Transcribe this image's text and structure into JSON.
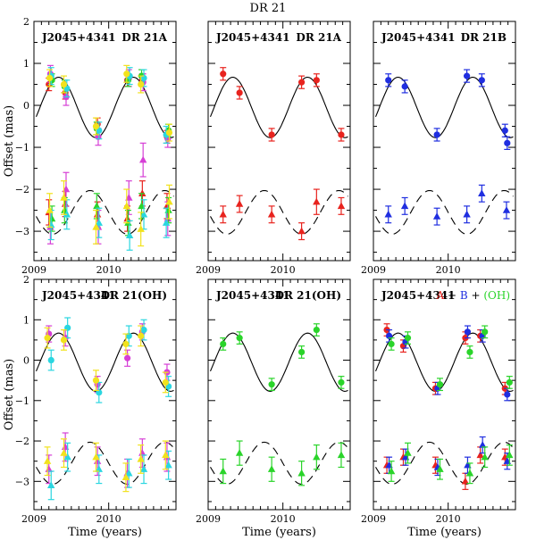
{
  "title": "DR 21",
  "colors": {
    "red": "#e8231e",
    "blue": "#1f2ee0",
    "green": "#2ad42a",
    "magenta": "#d63fd6",
    "cyan": "#2ad6e0",
    "yellow": "#f2e21c",
    "black": "#000000"
  },
  "chart_data": [
    {
      "type": "scatter",
      "panel": "top-left",
      "source_label": "J2045+4341",
      "target_label": "DR 21A",
      "xlim": [
        2009,
        2010.9
      ],
      "ylim": [
        -3.7,
        2
      ],
      "xticklabels": [
        "2009",
        "2010"
      ],
      "yticklabels": [
        "2",
        "1",
        "0",
        "−1",
        "−2",
        "−3"
      ],
      "ylabel": "Offset (mas)",
      "xlabel": "",
      "series": [
        {
          "color": "red",
          "marker": "circle",
          "x": [
            2009.2,
            2009.42,
            2009.85,
            2010.25,
            2010.45,
            2010.78
          ],
          "y": [
            0.5,
            0.3,
            -0.45,
            0.6,
            0.6,
            -0.75
          ],
          "err": [
            0.15,
            0.15,
            0.15,
            0.15,
            0.15,
            0.15
          ]
        },
        {
          "color": "magenta",
          "marker": "circle",
          "x": [
            2009.22,
            2009.43,
            2009.86,
            2010.27,
            2010.46,
            2010.79
          ],
          "y": [
            0.75,
            0.2,
            -0.75,
            0.65,
            0.55,
            -0.8
          ],
          "err": [
            0.2,
            0.2,
            0.2,
            0.2,
            0.2,
            0.2
          ]
        },
        {
          "color": "green",
          "marker": "circle",
          "x": [
            2009.24,
            2009.41,
            2009.84,
            2010.26,
            2010.44,
            2010.8
          ],
          "y": [
            0.6,
            0.45,
            -0.55,
            0.6,
            0.7,
            -0.6
          ],
          "err": [
            0.15,
            0.15,
            0.15,
            0.15,
            0.15,
            0.15
          ]
        },
        {
          "color": "cyan",
          "marker": "circle",
          "x": [
            2009.23,
            2009.44,
            2009.87,
            2010.28,
            2010.47,
            2010.77
          ],
          "y": [
            0.7,
            0.4,
            -0.6,
            0.7,
            0.65,
            -0.7
          ],
          "err": [
            0.2,
            0.2,
            0.2,
            0.2,
            0.2,
            0.2
          ]
        },
        {
          "color": "yellow",
          "marker": "circle",
          "x": [
            2009.21,
            2009.4,
            2009.83,
            2010.24,
            2010.43,
            2010.81
          ],
          "y": [
            0.65,
            0.5,
            -0.5,
            0.75,
            0.5,
            -0.65
          ],
          "err": [
            0.2,
            0.2,
            0.2,
            0.2,
            0.2,
            0.2
          ]
        },
        {
          "color": "red",
          "marker": "triangle",
          "x": [
            2009.2,
            2009.42,
            2009.85,
            2010.25,
            2010.45,
            2010.78
          ],
          "y": [
            -2.55,
            -2.35,
            -2.6,
            -2.7,
            -2.1,
            -2.4
          ],
          "err": [
            0.3,
            0.3,
            0.3,
            0.3,
            0.3,
            0.3
          ]
        },
        {
          "color": "magenta",
          "marker": "triangle",
          "x": [
            2009.22,
            2009.43,
            2009.86,
            2010.27,
            2010.46,
            2010.79
          ],
          "y": [
            -2.9,
            -2.0,
            -2.9,
            -2.2,
            -1.3,
            -2.7
          ],
          "err": [
            0.4,
            0.4,
            0.4,
            0.4,
            0.4,
            0.4
          ]
        },
        {
          "color": "green",
          "marker": "triangle",
          "x": [
            2009.24,
            2009.41,
            2009.84,
            2010.26,
            2010.44,
            2010.8
          ],
          "y": [
            -2.7,
            -2.5,
            -2.4,
            -2.8,
            -2.4,
            -2.5
          ],
          "err": [
            0.3,
            0.3,
            0.3,
            0.3,
            0.3,
            0.3
          ]
        },
        {
          "color": "cyan",
          "marker": "triangle",
          "x": [
            2009.23,
            2009.44,
            2009.87,
            2010.28,
            2010.47,
            2010.77
          ],
          "y": [
            -2.85,
            -2.6,
            -2.8,
            -3.1,
            -2.6,
            -2.8
          ],
          "err": [
            0.35,
            0.35,
            0.35,
            0.35,
            0.35,
            0.35
          ]
        },
        {
          "color": "yellow",
          "marker": "triangle",
          "x": [
            2009.21,
            2009.4,
            2009.83,
            2010.24,
            2010.43,
            2010.81
          ],
          "y": [
            -2.5,
            -2.2,
            -2.9,
            -2.4,
            -2.95,
            -2.3
          ],
          "err": [
            0.4,
            0.4,
            0.4,
            0.4,
            0.4,
            0.4
          ]
        }
      ]
    },
    {
      "type": "scatter",
      "panel": "top-middle",
      "source_label": "J2045+4341",
      "target_label": "DR 21A",
      "xlim": [
        2009,
        2010.9
      ],
      "ylim": [
        -3.7,
        2
      ],
      "xticklabels": [
        "2009",
        "2010"
      ],
      "yticklabels": [],
      "ylabel": "",
      "xlabel": "",
      "series": [
        {
          "color": "red",
          "marker": "circle",
          "x": [
            2009.2,
            2009.42,
            2009.85,
            2010.25,
            2010.45,
            2010.78
          ],
          "y": [
            0.75,
            0.3,
            -0.7,
            0.55,
            0.6,
            -0.7
          ],
          "err": [
            0.15,
            0.15,
            0.15,
            0.15,
            0.15,
            0.15
          ]
        },
        {
          "color": "red",
          "marker": "triangle",
          "x": [
            2009.2,
            2009.42,
            2009.85,
            2010.25,
            2010.45,
            2010.78
          ],
          "y": [
            -2.6,
            -2.35,
            -2.6,
            -3.0,
            -2.3,
            -2.4
          ],
          "err": [
            0.2,
            0.2,
            0.2,
            0.2,
            0.3,
            0.2
          ]
        }
      ]
    },
    {
      "type": "scatter",
      "panel": "top-right",
      "source_label": "J2045+4341",
      "target_label": "DR 21B",
      "xlim": [
        2009,
        2010.9
      ],
      "ylim": [
        -3.7,
        2
      ],
      "xticklabels": [
        "2009",
        "2010"
      ],
      "yticklabels": [],
      "ylabel": "",
      "xlabel": "",
      "series": [
        {
          "color": "blue",
          "marker": "circle",
          "x": [
            2009.2,
            2009.42,
            2009.85,
            2010.25,
            2010.45,
            2010.76,
            2010.79
          ],
          "y": [
            0.6,
            0.45,
            -0.7,
            0.7,
            0.6,
            -0.6,
            -0.9
          ],
          "err": [
            0.15,
            0.15,
            0.15,
            0.15,
            0.15,
            0.15,
            0.15
          ]
        },
        {
          "color": "blue",
          "marker": "triangle",
          "x": [
            2009.2,
            2009.42,
            2009.85,
            2010.25,
            2010.45,
            2010.78
          ],
          "y": [
            -2.6,
            -2.4,
            -2.65,
            -2.6,
            -2.1,
            -2.5
          ],
          "err": [
            0.2,
            0.2,
            0.2,
            0.2,
            0.2,
            0.2
          ]
        }
      ]
    },
    {
      "type": "scatter",
      "panel": "bottom-left",
      "source_label": "J2045+4341",
      "target_label": "DR 21(OH)",
      "xlim": [
        2009,
        2010.9
      ],
      "ylim": [
        -3.7,
        2
      ],
      "xticklabels": [
        "2009",
        "2010"
      ],
      "yticklabels": [
        "2",
        "1",
        "0",
        "−1",
        "−2",
        "−3"
      ],
      "ylabel": "Offset (mas)",
      "xlabel": "Time (years)",
      "series": [
        {
          "color": "magenta",
          "marker": "circle",
          "x": [
            2009.2,
            2009.42,
            2009.85,
            2010.25,
            2010.45,
            2010.78
          ],
          "y": [
            0.65,
            0.55,
            -0.6,
            0.05,
            0.7,
            -0.3
          ],
          "err": [
            0.2,
            0.2,
            0.2,
            0.2,
            0.2,
            0.2
          ]
        },
        {
          "color": "cyan",
          "marker": "circle",
          "x": [
            2009.23,
            2009.45,
            2009.87,
            2010.27,
            2010.47,
            2010.8
          ],
          "y": [
            0.0,
            0.8,
            -0.8,
            0.6,
            0.75,
            -0.65
          ],
          "err": [
            0.25,
            0.25,
            0.25,
            0.25,
            0.25,
            0.25
          ]
        },
        {
          "color": "yellow",
          "marker": "circle",
          "x": [
            2009.18,
            2009.4,
            2009.83,
            2010.23,
            2010.43,
            2010.76
          ],
          "y": [
            0.55,
            0.5,
            -0.5,
            0.4,
            0.6,
            -0.55
          ],
          "err": [
            0.25,
            0.25,
            0.25,
            0.25,
            0.25,
            0.25
          ]
        },
        {
          "color": "magenta",
          "marker": "triangle",
          "x": [
            2009.2,
            2009.42,
            2009.85,
            2010.25,
            2010.45,
            2010.78
          ],
          "y": [
            -2.7,
            -2.15,
            -2.5,
            -2.8,
            -2.3,
            -2.4
          ],
          "err": [
            0.35,
            0.35,
            0.35,
            0.35,
            0.35,
            0.35
          ]
        },
        {
          "color": "cyan",
          "marker": "triangle",
          "x": [
            2009.23,
            2009.45,
            2009.87,
            2010.27,
            2010.47,
            2010.8
          ],
          "y": [
            -3.1,
            -2.4,
            -2.7,
            -2.8,
            -2.7,
            -2.6
          ],
          "err": [
            0.35,
            0.35,
            0.35,
            0.35,
            0.35,
            0.35
          ]
        },
        {
          "color": "yellow",
          "marker": "triangle",
          "x": [
            2009.18,
            2009.4,
            2009.83,
            2010.23,
            2010.43,
            2010.76
          ],
          "y": [
            -2.5,
            -2.3,
            -2.4,
            -2.9,
            -2.45,
            -2.35
          ],
          "err": [
            0.35,
            0.35,
            0.35,
            0.35,
            0.35,
            0.35
          ]
        }
      ]
    },
    {
      "type": "scatter",
      "panel": "bottom-middle",
      "source_label": "J2045+4341",
      "target_label": "DR 21(OH)",
      "xlim": [
        2009,
        2010.9
      ],
      "ylim": [
        -3.7,
        2
      ],
      "xticklabels": [
        "2009",
        "2010"
      ],
      "yticklabels": [],
      "ylabel": "",
      "xlabel": "Time (years)",
      "series": [
        {
          "color": "green",
          "marker": "circle",
          "x": [
            2009.2,
            2009.42,
            2009.85,
            2010.25,
            2010.45,
            2010.78
          ],
          "y": [
            0.4,
            0.55,
            -0.6,
            0.2,
            0.75,
            -0.55
          ],
          "err": [
            0.15,
            0.15,
            0.15,
            0.15,
            0.15,
            0.15
          ]
        },
        {
          "color": "green",
          "marker": "triangle",
          "x": [
            2009.2,
            2009.42,
            2009.85,
            2010.25,
            2010.45,
            2010.78
          ],
          "y": [
            -2.75,
            -2.3,
            -2.7,
            -2.8,
            -2.4,
            -2.35
          ],
          "err": [
            0.3,
            0.3,
            0.3,
            0.3,
            0.3,
            0.3
          ]
        }
      ]
    },
    {
      "type": "scatter",
      "panel": "bottom-right",
      "source_label": "J2045+4341",
      "combo_label": [
        {
          "text": "A",
          "color": "red"
        },
        {
          "text": "+",
          "color": "black"
        },
        {
          "text": "B",
          "color": "blue"
        },
        {
          "text": "+",
          "color": "black"
        },
        {
          "text": "(OH)",
          "color": "green"
        }
      ],
      "xlim": [
        2009,
        2010.9
      ],
      "ylim": [
        -3.7,
        2
      ],
      "xticklabels": [
        "2009",
        "2010"
      ],
      "yticklabels": [],
      "ylabel": "",
      "xlabel": "Time (years)",
      "series": [
        {
          "color": "red",
          "marker": "circle",
          "x": [
            2009.18,
            2009.4,
            2009.83,
            2010.23,
            2010.43,
            2010.76
          ],
          "y": [
            0.75,
            0.35,
            -0.7,
            0.55,
            0.6,
            -0.7
          ],
          "err": [
            0.15,
            0.15,
            0.15,
            0.15,
            0.15,
            0.15
          ]
        },
        {
          "color": "blue",
          "marker": "circle",
          "x": [
            2009.21,
            2009.43,
            2009.86,
            2010.26,
            2010.46,
            2010.79
          ],
          "y": [
            0.6,
            0.45,
            -0.7,
            0.7,
            0.6,
            -0.85
          ],
          "err": [
            0.15,
            0.15,
            0.15,
            0.15,
            0.15,
            0.15
          ]
        },
        {
          "color": "green",
          "marker": "circle",
          "x": [
            2009.24,
            2009.46,
            2009.89,
            2010.29,
            2010.49,
            2010.82
          ],
          "y": [
            0.4,
            0.55,
            -0.6,
            0.2,
            0.7,
            -0.55
          ],
          "err": [
            0.15,
            0.15,
            0.15,
            0.15,
            0.15,
            0.15
          ]
        },
        {
          "color": "red",
          "marker": "triangle",
          "x": [
            2009.18,
            2009.4,
            2009.83,
            2010.23,
            2010.43,
            2010.76
          ],
          "y": [
            -2.6,
            -2.4,
            -2.6,
            -3.0,
            -2.35,
            -2.4
          ],
          "err": [
            0.2,
            0.2,
            0.2,
            0.2,
            0.2,
            0.2
          ]
        },
        {
          "color": "blue",
          "marker": "triangle",
          "x": [
            2009.21,
            2009.43,
            2009.86,
            2010.26,
            2010.46,
            2010.79
          ],
          "y": [
            -2.6,
            -2.4,
            -2.65,
            -2.6,
            -2.1,
            -2.5
          ],
          "err": [
            0.2,
            0.2,
            0.2,
            0.2,
            0.2,
            0.2
          ]
        },
        {
          "color": "green",
          "marker": "triangle",
          "x": [
            2009.24,
            2009.46,
            2009.89,
            2010.29,
            2010.49,
            2010.82
          ],
          "y": [
            -2.75,
            -2.3,
            -2.7,
            -2.8,
            -2.4,
            -2.35
          ],
          "err": [
            0.25,
            0.25,
            0.25,
            0.25,
            0.25,
            0.25
          ]
        }
      ]
    }
  ]
}
